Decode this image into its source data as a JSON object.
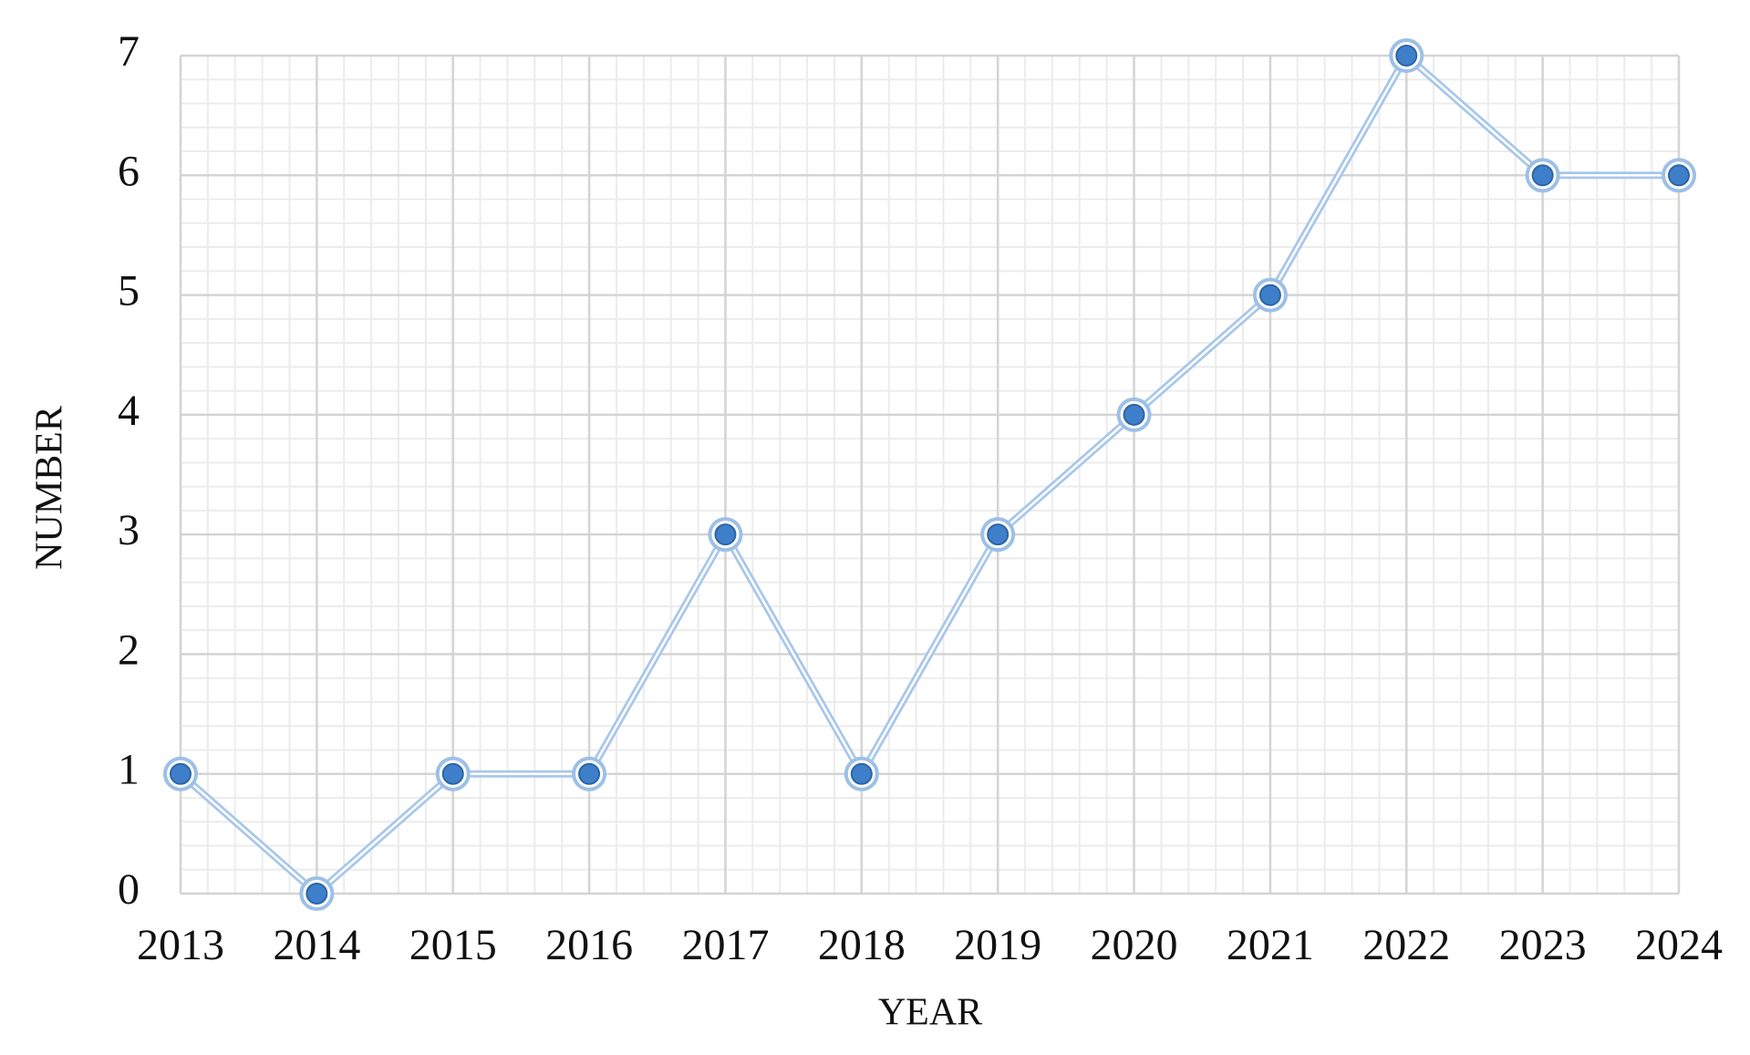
{
  "chart_data": {
    "type": "line",
    "x_label": "YEAR",
    "y_label": "NUMBER",
    "x": [
      2013,
      2014,
      2015,
      2016,
      2017,
      2018,
      2019,
      2020,
      2021,
      2022,
      2023,
      2024
    ],
    "series": [
      {
        "color": "#3f7fc9",
        "values": [
          1,
          0,
          1,
          1,
          3,
          1,
          3,
          4,
          5,
          7,
          6,
          6
        ]
      }
    ],
    "xlim": [
      2013,
      2024
    ],
    "xticks": [
      2013,
      2014,
      2015,
      2016,
      2017,
      2018,
      2019,
      2020,
      2021,
      2022,
      2023,
      2024
    ],
    "ylim": [
      0,
      7
    ],
    "yticks": [
      0,
      1,
      2,
      3,
      4,
      5,
      6,
      7
    ],
    "grid": true
  }
}
